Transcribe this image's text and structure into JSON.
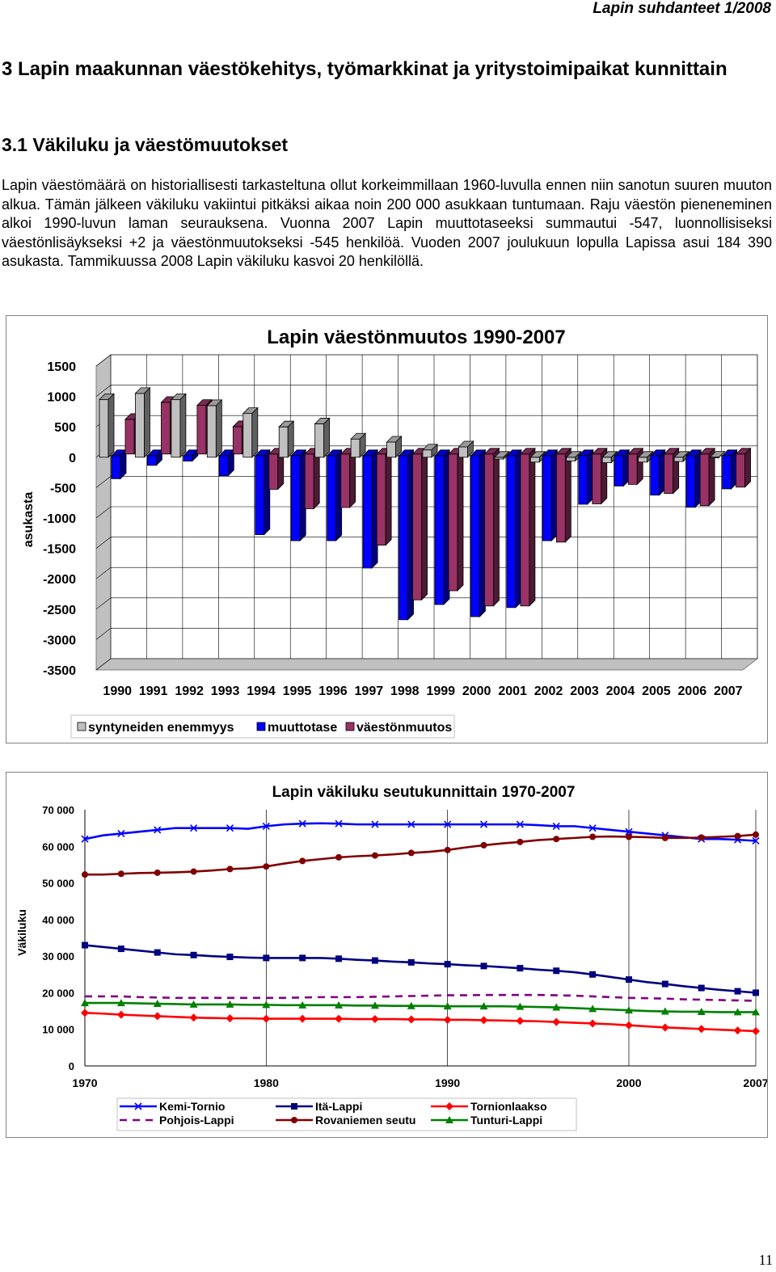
{
  "page": {
    "header": "Lapin suhdanteet 1/2008",
    "heading1": "3 Lapin maakunnan väestökehitys, työmarkkinat ja yritystoimipaikat kunnittain",
    "heading2": "3.1 Väkiluku ja väestömuutokset",
    "paragraph": "Lapin väestömäärä on historiallisesti tarkasteltuna ollut korkeimmillaan 1960-luvulla ennen niin sanotun suuren muuton alkua. Tämän jälkeen väkiluku vakiintui pitkäksi aikaa noin 200 000 asukkaan tuntumaan. Raju väestön pieneneminen alkoi 1990-luvun laman seurauksena. Vuonna 2007 Lapin muuttotaseeksi summautui -547, luonnollisiseksi väestönlisäykseksi +2 ja väestönmuutokseksi -545 henkilöä. Vuoden 2007 joulukuun lopulla Lapissa asui 184 390 asukasta. Tammikuussa 2008 Lapin väkiluku kasvoi 20 henkilöllä.",
    "page_number": "11"
  },
  "chart_data": [
    {
      "type": "bar",
      "title": "Lapin väestönmuutos 1990-2007",
      "ylabel": "asukasta",
      "ylim": [
        -3500,
        1500
      ],
      "yticks": [
        "1500",
        "1000",
        "500",
        "0",
        "-500",
        "-1000",
        "-1500",
        "-2000",
        "-2500",
        "-3000",
        "-3500"
      ],
      "categories": [
        "1990",
        "1991",
        "1992",
        "1993",
        "1994",
        "1995",
        "1996",
        "1997",
        "1998",
        "1999",
        "2000",
        "2001",
        "2002",
        "2003",
        "2004",
        "2005",
        "2006",
        "2007"
      ],
      "legend_position": "bottom",
      "series": [
        {
          "name": "syntyneiden enemmyys",
          "color": "#c0c0c0",
          "values": [
            950,
            1050,
            950,
            850,
            720,
            500,
            550,
            300,
            250,
            120,
            170,
            -30,
            -80,
            -60,
            -90,
            -80,
            -70,
            2
          ]
        },
        {
          "name": "muuttotase",
          "color": "#0000ff",
          "values": [
            -380,
            -160,
            -90,
            -330,
            -1300,
            -1400,
            -1400,
            -1850,
            -2700,
            -2450,
            -2650,
            -2500,
            -1400,
            -800,
            -500,
            -650,
            -850,
            -547
          ]
        },
        {
          "name": "väestönmuutos",
          "color": "#993366",
          "values": [
            570,
            850,
            800,
            450,
            -580,
            -900,
            -880,
            -1500,
            -2400,
            -2250,
            -2500,
            -2500,
            -1450,
            -820,
            -500,
            -650,
            -850,
            -545
          ]
        }
      ]
    },
    {
      "type": "line",
      "title": "Lapin väkiluku seutukunnittain 1970-2007",
      "ylabel": "Väkiluku",
      "ylim": [
        0,
        70000
      ],
      "yticks": [
        "70 000",
        "60 000",
        "50 000",
        "40 000",
        "30 000",
        "20 000",
        "10 000",
        "0"
      ],
      "xticks": [
        "1970",
        "1980",
        "1990",
        "2000",
        "2007"
      ],
      "x_start": 1970,
      "x_end": 2007,
      "legend_position": "bottom",
      "series": [
        {
          "name": "Kemi-Tornio",
          "color": "#0000ff",
          "marker": "x",
          "dash": false,
          "values": [
            62000,
            63000,
            63500,
            64000,
            64500,
            65000,
            65000,
            65000,
            65000,
            64800,
            65500,
            66000,
            66200,
            66300,
            66200,
            66000,
            66000,
            66000,
            66000,
            66000,
            66000,
            66000,
            66000,
            66000,
            66000,
            65800,
            65500,
            65500,
            65000,
            64500,
            64000,
            63500,
            63000,
            62500,
            62000,
            62000,
            61800,
            61500
          ]
        },
        {
          "name": "Itä-Lappi",
          "color": "#000080",
          "marker": "square",
          "dash": false,
          "values": [
            33000,
            32500,
            32000,
            31500,
            31000,
            30500,
            30300,
            30000,
            29800,
            29600,
            29500,
            29500,
            29500,
            29500,
            29300,
            29000,
            28800,
            28500,
            28300,
            28000,
            27800,
            27500,
            27300,
            27000,
            26700,
            26300,
            26000,
            25600,
            25000,
            24300,
            23600,
            22900,
            22400,
            21800,
            21300,
            20800,
            20400,
            20000
          ]
        },
        {
          "name": "Tornionlaakso",
          "color": "#ff0000",
          "marker": "diamond",
          "dash": false,
          "values": [
            14500,
            14300,
            14000,
            13800,
            13600,
            13400,
            13200,
            13100,
            13000,
            13000,
            12900,
            12900,
            12900,
            12900,
            12900,
            12800,
            12800,
            12800,
            12700,
            12700,
            12600,
            12600,
            12500,
            12400,
            12300,
            12200,
            12000,
            11800,
            11600,
            11400,
            11100,
            10800,
            10500,
            10300,
            10100,
            9900,
            9700,
            9500
          ]
        },
        {
          "name": "Pohjois-Lappi",
          "color": "#800080",
          "marker": "none",
          "dash": true,
          "values": [
            19000,
            19000,
            19000,
            18800,
            18700,
            18600,
            18600,
            18600,
            18600,
            18600,
            18600,
            18600,
            18700,
            18800,
            18800,
            18800,
            18900,
            19000,
            19100,
            19200,
            19300,
            19300,
            19400,
            19400,
            19400,
            19400,
            19300,
            19200,
            19000,
            18800,
            18600,
            18500,
            18400,
            18200,
            18100,
            18000,
            17900,
            17800
          ]
        },
        {
          "name": "Rovaniemen seutu",
          "color": "#800000",
          "marker": "circle",
          "dash": false,
          "values": [
            52300,
            52300,
            52500,
            52700,
            52800,
            52900,
            53100,
            53400,
            53800,
            54000,
            54500,
            55300,
            56000,
            56500,
            57000,
            57300,
            57500,
            57800,
            58200,
            58500,
            59000,
            59700,
            60300,
            60800,
            61200,
            61700,
            62000,
            62300,
            62600,
            62700,
            62600,
            62500,
            62300,
            62300,
            62400,
            62600,
            62800,
            63200
          ]
        },
        {
          "name": "Tunturi-Lappi",
          "color": "#008000",
          "marker": "triangle",
          "dash": false,
          "values": [
            17200,
            17200,
            17200,
            17100,
            17000,
            16900,
            16800,
            16800,
            16800,
            16700,
            16700,
            16600,
            16600,
            16600,
            16600,
            16500,
            16500,
            16400,
            16400,
            16400,
            16300,
            16300,
            16300,
            16300,
            16200,
            16100,
            16000,
            15800,
            15600,
            15400,
            15200,
            15000,
            14900,
            14800,
            14800,
            14700,
            14700,
            14700
          ]
        }
      ]
    }
  ]
}
